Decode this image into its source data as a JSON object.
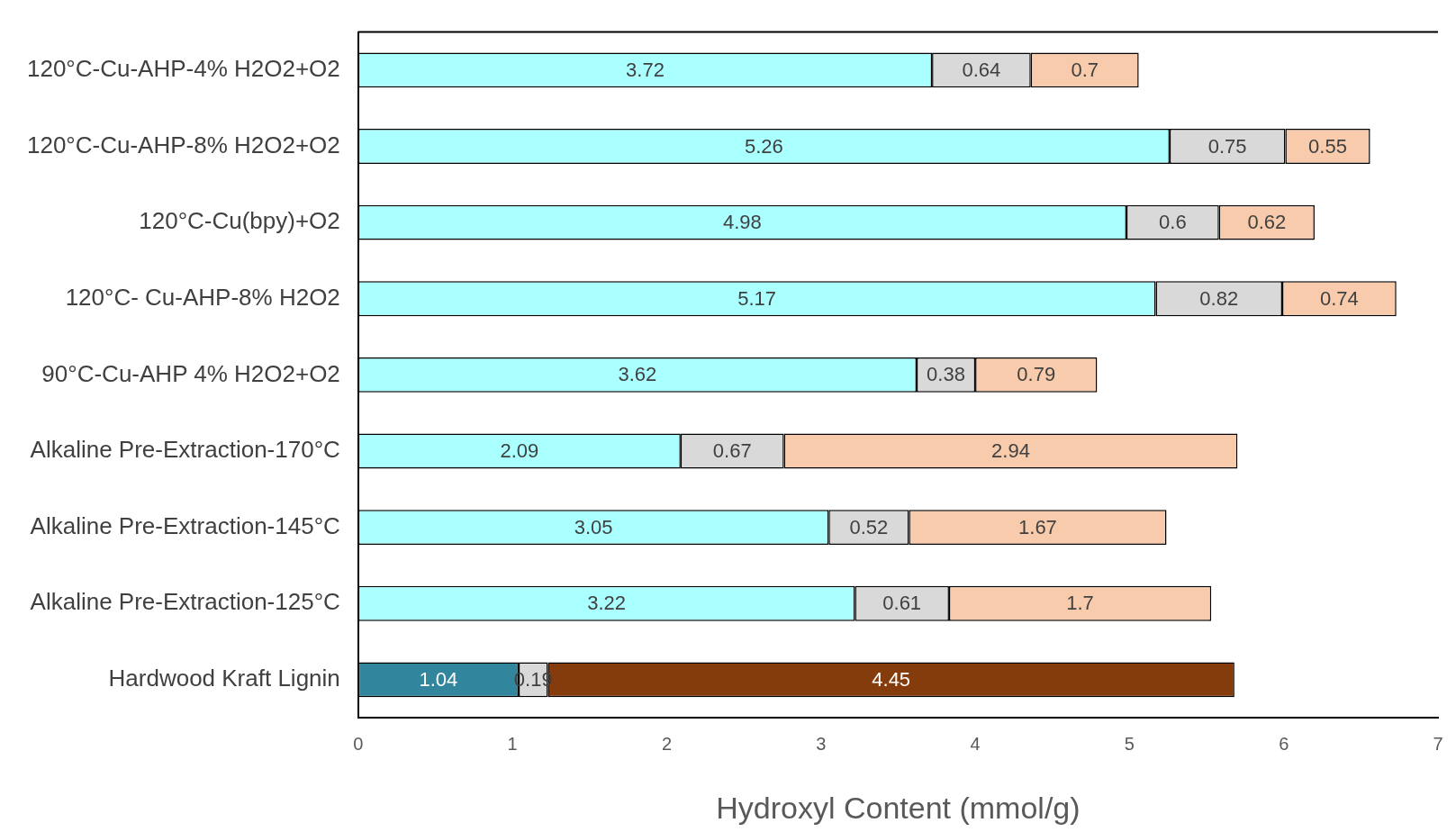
{
  "chart_data": {
    "type": "bar",
    "orientation": "horizontal",
    "stacked": true,
    "data_labels": true,
    "legend": false,
    "grid": false,
    "xlabel": "Hydroxyl Content (mmol/g)",
    "categories": [
      "120°C-Cu-AHP-4% H2O2+O2",
      "120°C-Cu-AHP-8% H2O2+O2",
      "120°C-Cu(bpy)+O2",
      "120°C- Cu-AHP-8% H2O2",
      "90°C-Cu-AHP 4% H2O2+O2",
      "Alkaline Pre-Extraction-170°C",
      "Alkaline Pre-Extraction-145°C",
      "Alkaline Pre-Extraction-125°C",
      "Hardwood Kraft Lignin"
    ],
    "xlim": [
      0,
      7
    ],
    "xticks": [
      0,
      1,
      2,
      3,
      4,
      5,
      6,
      7
    ],
    "series": [
      {
        "colors": [
          "#aaffff",
          "#aaffff",
          "#aaffff",
          "#aaffff",
          "#aaffff",
          "#aaffff",
          "#aaffff",
          "#aaffff",
          "#31859c"
        ],
        "values": [
          3.72,
          5.26,
          4.98,
          5.17,
          3.62,
          2.09,
          3.05,
          3.22,
          1.04
        ]
      },
      {
        "colors": [
          "#d9d9d9",
          "#d9d9d9",
          "#d9d9d9",
          "#d9d9d9",
          "#d9d9d9",
          "#d9d9d9",
          "#d9d9d9",
          "#d9d9d9",
          "#d9d9d9"
        ],
        "values": [
          0.64,
          0.75,
          0.6,
          0.82,
          0.38,
          0.67,
          0.52,
          0.61,
          0.19
        ]
      },
      {
        "colors": [
          "#f7cbac",
          "#f7cbac",
          "#f7cbac",
          "#f7cbac",
          "#f7cbac",
          "#f7cbac",
          "#f7cbac",
          "#f7cbac",
          "#843c0c"
        ],
        "values": [
          0.7,
          0.55,
          0.62,
          0.74,
          0.79,
          2.94,
          1.67,
          1.7,
          4.45
        ]
      }
    ]
  }
}
